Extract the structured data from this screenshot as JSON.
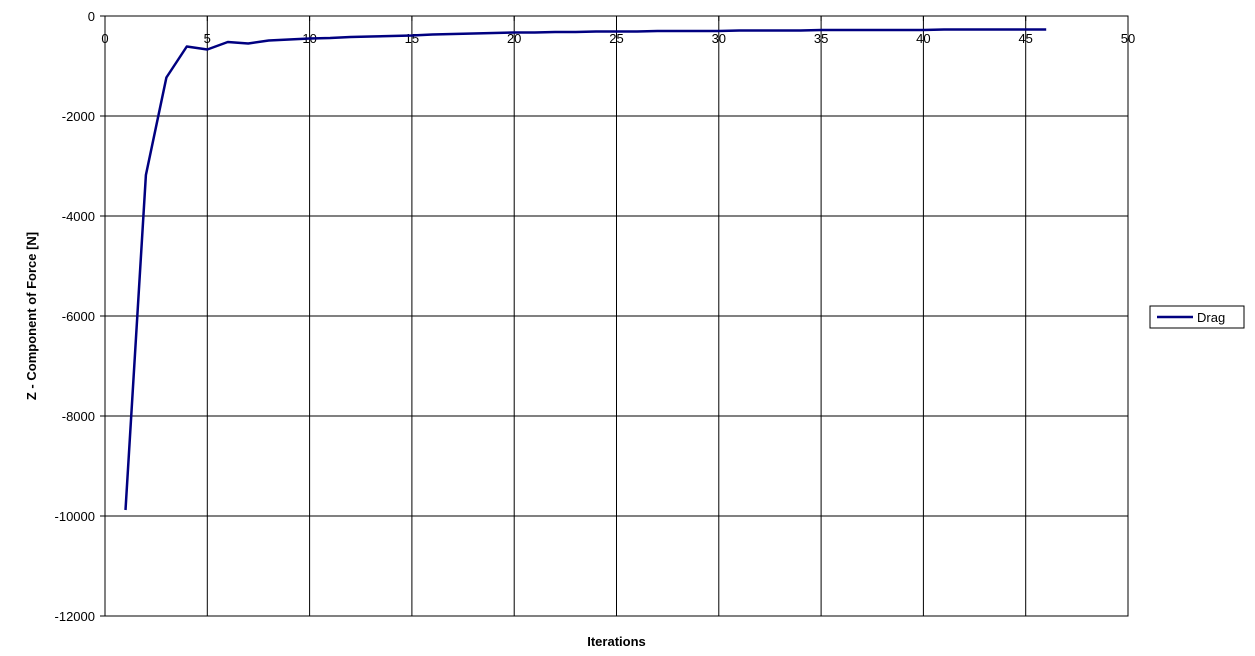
{
  "chart_data": {
    "type": "line",
    "title": "",
    "xlabel": "Iterations",
    "ylabel": "Z - Component of Force  [N]",
    "xlim": [
      0,
      50
    ],
    "ylim": [
      -12000,
      0
    ],
    "xticks": [
      0,
      5,
      10,
      15,
      20,
      25,
      30,
      35,
      40,
      45,
      50
    ],
    "yticks": [
      0,
      -2000,
      -4000,
      -6000,
      -8000,
      -10000,
      -12000
    ],
    "grid": true,
    "x_axis_position": "top",
    "legend_position": "right",
    "series": [
      {
        "name": "Drag",
        "color": "#000080",
        "x": [
          1,
          2,
          3,
          4,
          5,
          6,
          7,
          8,
          9,
          10,
          11,
          12,
          13,
          14,
          15,
          16,
          17,
          18,
          19,
          20,
          21,
          22,
          23,
          24,
          25,
          26,
          27,
          28,
          29,
          30,
          31,
          32,
          33,
          34,
          35,
          36,
          37,
          38,
          39,
          40,
          41,
          42,
          43,
          44,
          45,
          46
        ],
        "y": [
          -9880,
          -3180,
          -1230,
          -610,
          -670,
          -520,
          -550,
          -490,
          -470,
          -450,
          -440,
          -420,
          -410,
          -400,
          -390,
          -370,
          -360,
          -350,
          -340,
          -330,
          -330,
          -320,
          -320,
          -310,
          -310,
          -310,
          -300,
          -300,
          -300,
          -300,
          -290,
          -290,
          -290,
          -290,
          -280,
          -280,
          -280,
          -280,
          -280,
          -280,
          -270,
          -270,
          -270,
          -270,
          -270,
          -270
        ]
      }
    ]
  }
}
